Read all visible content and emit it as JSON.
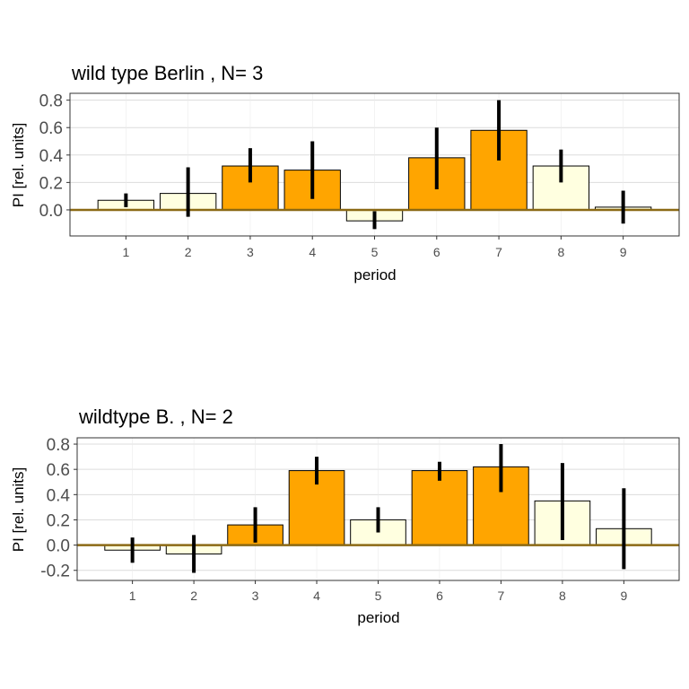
{
  "colors": {
    "highlight": "#FFA500",
    "light": "#FFFFE0",
    "baseline": "#8B6914",
    "grid": "#DCDCDC",
    "error_bar": "#000000"
  },
  "chart_data": [
    {
      "type": "bar",
      "title": "wild type Berlin , N= 3",
      "xlabel": "period",
      "ylabel": "PI [rel. units]",
      "categories": [
        "1",
        "2",
        "3",
        "4",
        "5",
        "6",
        "7",
        "8",
        "9"
      ],
      "values": [
        0.07,
        0.12,
        0.32,
        0.29,
        -0.08,
        0.38,
        0.58,
        0.32,
        0.02
      ],
      "error_low": [
        0.02,
        -0.05,
        0.2,
        0.08,
        -0.14,
        0.15,
        0.36,
        0.2,
        -0.1
      ],
      "error_high": [
        0.12,
        0.31,
        0.45,
        0.5,
        -0.01,
        0.6,
        0.8,
        0.44,
        0.14
      ],
      "fill": [
        "light",
        "light",
        "highlight",
        "highlight",
        "light",
        "highlight",
        "highlight",
        "light",
        "light"
      ],
      "ylim": [
        -0.19,
        0.85
      ],
      "yticks": [
        0.0,
        0.2,
        0.4,
        0.6,
        0.8
      ],
      "ytick_labels": [
        "0.0",
        "0.2",
        "0.4",
        "0.6",
        "0.8"
      ],
      "grid": true,
      "baseline": 0
    },
    {
      "type": "bar",
      "title": "wildtype B. , N= 2",
      "xlabel": "period",
      "ylabel": "PI [rel. units]",
      "categories": [
        "1",
        "2",
        "3",
        "4",
        "5",
        "6",
        "7",
        "8",
        "9"
      ],
      "values": [
        -0.04,
        -0.07,
        0.16,
        0.59,
        0.2,
        0.59,
        0.62,
        0.35,
        0.13
      ],
      "error_low": [
        -0.14,
        -0.22,
        0.02,
        0.48,
        0.1,
        0.51,
        0.42,
        0.04,
        -0.19
      ],
      "error_high": [
        0.06,
        0.08,
        0.3,
        0.7,
        0.3,
        0.66,
        0.8,
        0.65,
        0.45
      ],
      "fill": [
        "light",
        "light",
        "highlight",
        "highlight",
        "light",
        "highlight",
        "highlight",
        "light",
        "light"
      ],
      "ylim": [
        -0.28,
        0.85
      ],
      "yticks": [
        -0.2,
        0.0,
        0.2,
        0.4,
        0.6,
        0.8
      ],
      "ytick_labels": [
        "-0.2",
        "0.0",
        "0.2",
        "0.4",
        "0.6",
        "0.8"
      ],
      "grid": true,
      "baseline": 0
    }
  ]
}
